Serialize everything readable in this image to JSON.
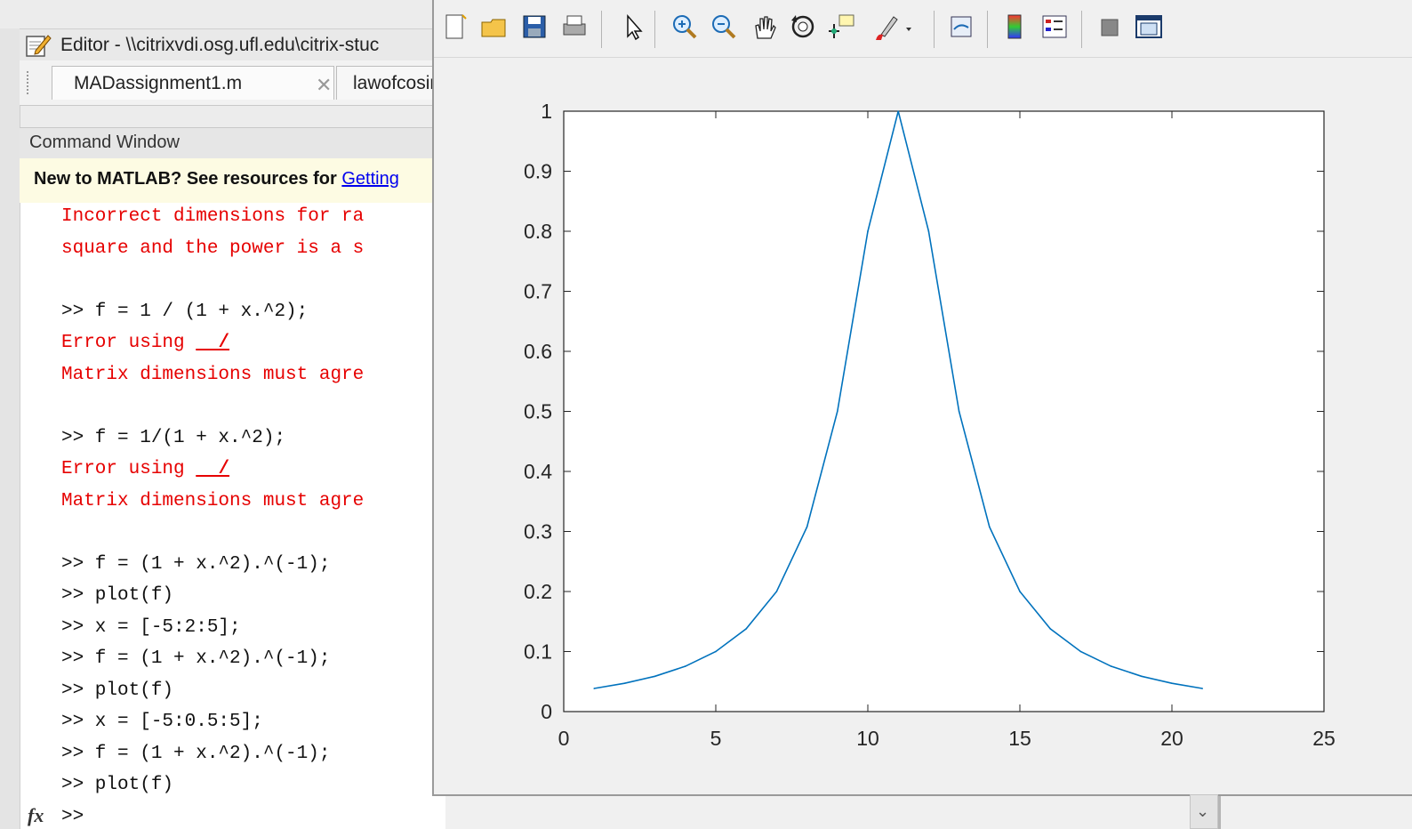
{
  "editor": {
    "title": "Editor - \\\\citrixvdi.osg.ufl.edu\\citrix-stuc",
    "tabs": [
      {
        "label": "MADassignment1.m"
      },
      {
        "label": "lawofcosin"
      }
    ]
  },
  "command_window": {
    "title": "Command Window",
    "banner_prefix": "New to MATLAB? See resources for ",
    "banner_link": "Getting",
    "lines": [
      {
        "text": "Incorrect dimensions for ra",
        "kind": "error"
      },
      {
        "text": "square and the power is a s",
        "kind": "error"
      },
      {
        "text": "",
        "kind": "blank"
      },
      {
        "text": ">> f = 1 / (1 + x.^2);",
        "kind": "command"
      },
      {
        "text": "Error using  /",
        "kind": "error"
      },
      {
        "text": "Matrix dimensions must agre",
        "kind": "error"
      },
      {
        "text": "",
        "kind": "blank"
      },
      {
        "text": ">> f = 1/(1 + x.^2);",
        "kind": "command"
      },
      {
        "text": "Error using  /",
        "kind": "error"
      },
      {
        "text": "Matrix dimensions must agre",
        "kind": "error"
      },
      {
        "text": "",
        "kind": "blank"
      },
      {
        "text": ">> f = (1 + x.^2).^(-1);",
        "kind": "command"
      },
      {
        "text": ">> plot(f)",
        "kind": "command"
      },
      {
        "text": ">> x = [-5:2:5];",
        "kind": "command"
      },
      {
        "text": ">> f = (1 + x.^2).^(-1);",
        "kind": "command"
      },
      {
        "text": ">> plot(f)",
        "kind": "command"
      },
      {
        "text": ">> x = [-5:0.5:5];",
        "kind": "command"
      },
      {
        "text": ">> f = (1 + x.^2).^(-1);",
        "kind": "command"
      },
      {
        "text": ">> plot(f)",
        "kind": "command"
      },
      {
        "text": ">>",
        "kind": "command"
      }
    ],
    "prompt_icon": "fx"
  },
  "figure_toolbar": {
    "buttons": [
      {
        "name": "new-figure-icon"
      },
      {
        "name": "open-file-icon"
      },
      {
        "name": "save-icon"
      },
      {
        "name": "print-icon"
      },
      {
        "name": "edit-plot-arrow-icon"
      },
      {
        "name": "zoom-in-icon"
      },
      {
        "name": "zoom-out-icon"
      },
      {
        "name": "pan-hand-icon"
      },
      {
        "name": "rotate-3d-icon"
      },
      {
        "name": "data-cursor-icon"
      },
      {
        "name": "brush-icon"
      },
      {
        "name": "link-plot-icon"
      },
      {
        "name": "colorbar-icon"
      },
      {
        "name": "legend-icon"
      },
      {
        "name": "hide-plot-tools-icon"
      },
      {
        "name": "show-plot-tools-icon"
      }
    ]
  },
  "chart_data": {
    "type": "line",
    "title": "",
    "xlabel": "",
    "ylabel": "",
    "xlim": [
      0,
      25
    ],
    "ylim": [
      0,
      1
    ],
    "xticks": [
      "0",
      "5",
      "10",
      "15",
      "20",
      "25"
    ],
    "yticks": [
      "0",
      "0.1",
      "0.2",
      "0.3",
      "0.4",
      "0.5",
      "0.6",
      "0.7",
      "0.8",
      "0.9",
      "1"
    ],
    "grid": false,
    "line_color": "#0072BD",
    "series": [
      {
        "x": [
          1,
          2,
          3,
          4,
          5,
          6,
          7,
          8,
          9,
          10,
          11,
          12,
          13,
          14,
          15,
          16,
          17,
          18,
          19,
          20,
          21
        ],
        "values": [
          0.0385,
          0.0471,
          0.0588,
          0.0755,
          0.1,
          0.1379,
          0.2,
          0.3077,
          0.5,
          0.8,
          1.0,
          0.8,
          0.5,
          0.3077,
          0.2,
          0.1379,
          0.1,
          0.0755,
          0.0588,
          0.0471,
          0.0385
        ]
      }
    ]
  }
}
